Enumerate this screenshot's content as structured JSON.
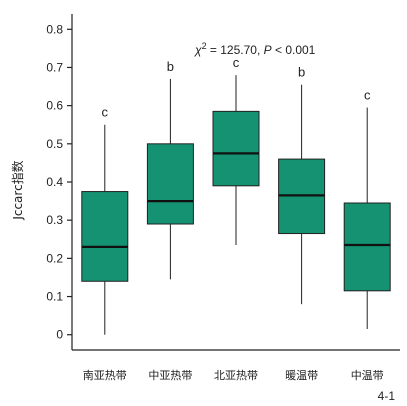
{
  "colors": {
    "box_fill": "#149271",
    "box_stroke": "#222222",
    "axis": "#222222"
  },
  "figure_number": "4-1",
  "chart_data": {
    "type": "box",
    "ylabel": "Jccarc指数",
    "xlabel": "",
    "title": "",
    "ylim": [
      -0.04,
      0.84
    ],
    "yticks": [
      0,
      0.1,
      0.2,
      0.3,
      0.4,
      0.5,
      0.6,
      0.7,
      0.8
    ],
    "ytick_labels": [
      "0",
      "0.1",
      "0.2",
      "0.3",
      "0.4",
      "0.5",
      "0.6",
      "0.7",
      "0.8"
    ],
    "annotation": {
      "parts": [
        "χ",
        "2",
        " = 125.70, ",
        "P",
        " < 0.001"
      ]
    },
    "categories": [
      "南亚热带",
      "中亚热带",
      "北亚热带",
      "暖温带",
      "中温带"
    ],
    "boxes": [
      {
        "whisker_low": 0.0,
        "q1": 0.14,
        "median": 0.23,
        "q3": 0.375,
        "whisker_high": 0.55,
        "sig": "c"
      },
      {
        "whisker_low": 0.145,
        "q1": 0.29,
        "median": 0.35,
        "q3": 0.5,
        "whisker_high": 0.67,
        "sig": "b"
      },
      {
        "whisker_low": 0.235,
        "q1": 0.39,
        "median": 0.475,
        "q3": 0.585,
        "whisker_high": 0.68,
        "sig": "c"
      },
      {
        "whisker_low": 0.08,
        "q1": 0.265,
        "median": 0.365,
        "q3": 0.46,
        "whisker_high": 0.655,
        "sig": "b"
      },
      {
        "whisker_low": 0.015,
        "q1": 0.115,
        "median": 0.235,
        "q3": 0.345,
        "whisker_high": 0.595,
        "sig": "c"
      }
    ]
  }
}
